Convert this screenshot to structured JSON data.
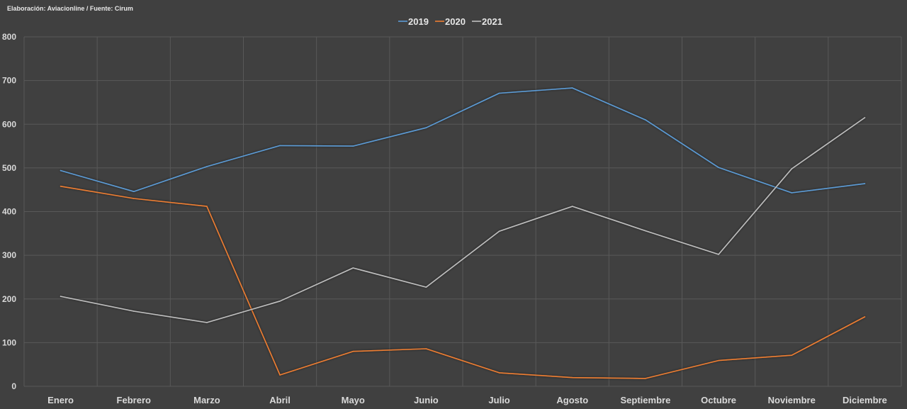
{
  "credit": "Elaboración: Aviacionline  /  Fuente: Cirum",
  "chart_data": {
    "type": "line",
    "title": "",
    "xlabel": "",
    "ylabel": "",
    "categories": [
      "Enero",
      "Febrero",
      "Marzo",
      "Abril",
      "Mayo",
      "Junio",
      "Julio",
      "Agosto",
      "Septiembre",
      "Octubre",
      "Noviembre",
      "Diciembre"
    ],
    "ylim": [
      0,
      800
    ],
    "yticks": [
      0,
      100,
      200,
      300,
      400,
      500,
      600,
      700,
      800
    ],
    "grid": true,
    "legend_position": "top-center",
    "series": [
      {
        "name": "2019",
        "color": "#5b9bd5",
        "values": [
          494,
          446,
          503,
          551,
          550,
          592,
          671,
          683,
          610,
          501,
          443,
          464
        ]
      },
      {
        "name": "2020",
        "color": "#ed7d31",
        "values": [
          458,
          430,
          412,
          26,
          80,
          86,
          31,
          20,
          18,
          59,
          71,
          159
        ]
      },
      {
        "name": "2021",
        "color": "#bfbfbf",
        "values": [
          206,
          172,
          146,
          195,
          271,
          227,
          355,
          412,
          356,
          302,
          498,
          615
        ]
      }
    ]
  }
}
